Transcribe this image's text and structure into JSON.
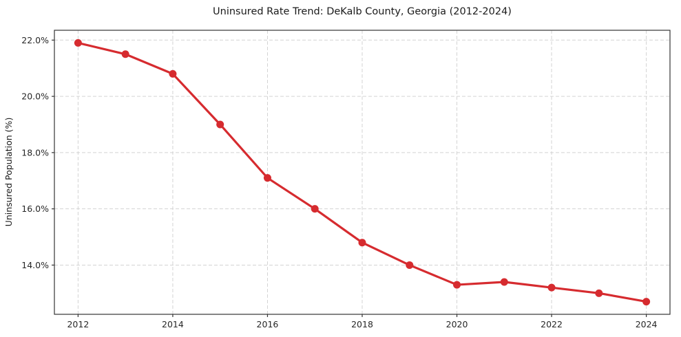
{
  "chart_data": {
    "type": "line",
    "title": "Uninsured Rate Trend: DeKalb County, Georgia (2012-2024)",
    "xlabel": "",
    "ylabel": "Uninsured Population (%)",
    "x": [
      2012,
      2013,
      2014,
      2015,
      2016,
      2017,
      2018,
      2019,
      2020,
      2021,
      2022,
      2023,
      2024
    ],
    "values": [
      21.9,
      21.5,
      20.8,
      19.0,
      17.1,
      16.0,
      14.8,
      14.0,
      13.3,
      13.4,
      13.2,
      13.0,
      12.7
    ],
    "value_unit": "%",
    "xticks": [
      2012,
      2014,
      2016,
      2018,
      2020,
      2022,
      2024
    ],
    "yticks": [
      14,
      16,
      18,
      20,
      22
    ],
    "ytick_labels": [
      "14.0%",
      "16.0%",
      "18.0%",
      "20.0%",
      "22.0%"
    ],
    "xlim": [
      2011.5,
      2024.5
    ],
    "ylim": [
      12.25,
      22.35
    ],
    "grid": true,
    "grid_style": "dashed",
    "legend_position": "none",
    "marker": "circle",
    "colors": {
      "line": "#d62b2f",
      "marker": "#d62b2f",
      "grid": "#d3d3d3",
      "axis": "#333333",
      "text": "#262626",
      "background": "#ffffff"
    }
  }
}
